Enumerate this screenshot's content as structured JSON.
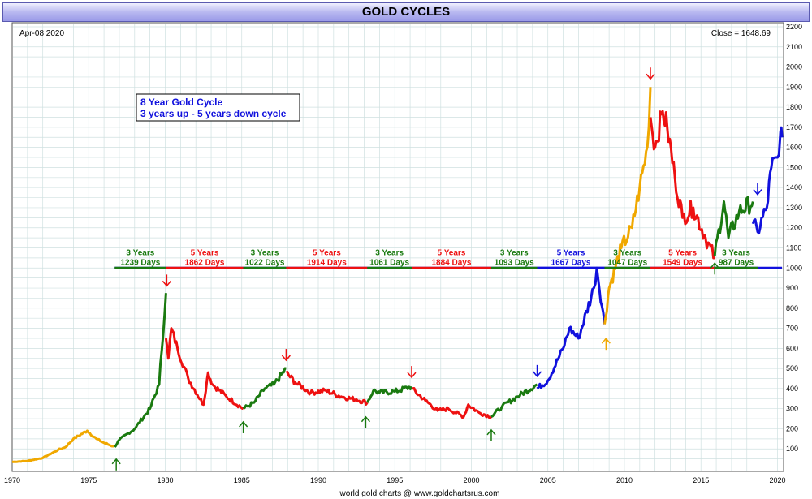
{
  "header": {
    "title": "GOLD CYCLES"
  },
  "info": {
    "date": "Apr-08  2020",
    "close": "Close = 1648.69"
  },
  "annotation": {
    "line1": "8 Year Gold Cycle",
    "line2": "3 years up - 5 years down cycle"
  },
  "footer": {
    "credit": "world gold charts @ www.goldchartsrus.com"
  },
  "colors": {
    "yellow": "#f0a800",
    "green": "#1a7a10",
    "red": "#ee1111",
    "blue": "#1111dd",
    "grid": "#cfe0e0"
  },
  "chart_data": {
    "type": "line",
    "title": "GOLD CYCLES",
    "xlim": [
      1970,
      2020.4
    ],
    "ylim": [
      0,
      2200
    ],
    "x_ticks": [
      1970,
      1975,
      1980,
      1985,
      1990,
      1995,
      2000,
      2005,
      2010,
      2015,
      2020
    ],
    "y_ticks": [
      100,
      200,
      300,
      400,
      500,
      600,
      700,
      800,
      900,
      1000,
      1100,
      1200,
      1300,
      1400,
      1500,
      1600,
      1700,
      1800,
      1900,
      2000,
      2100,
      2200
    ],
    "grid": true,
    "reference_line": 1000,
    "series": [
      {
        "color": "yellow",
        "x": [
          1970,
          1971,
          1972,
          1973,
          1973.5,
          1974,
          1974.9,
          1975.5,
          1976,
          1976.7
        ],
        "y": [
          35,
          40,
          55,
          95,
          110,
          150,
          190,
          150,
          130,
          110
        ]
      },
      {
        "color": "green",
        "x": [
          1976.7,
          1977,
          1978,
          1979,
          1979.6,
          1980.05
        ],
        "y": [
          110,
          145,
          200,
          300,
          420,
          875
        ]
      },
      {
        "color": "red",
        "x": [
          1980.05,
          1980.2,
          1980.4,
          1980.8,
          1981.5,
          1982.5,
          1982.8,
          1983.1,
          1984,
          1985.1
        ],
        "y": [
          650,
          550,
          700,
          600,
          450,
          320,
          480,
          420,
          360,
          300
        ]
      },
      {
        "color": "green",
        "x": [
          1985.1,
          1985.8,
          1986.5,
          1987.1,
          1987.9
        ],
        "y": [
          300,
          330,
          400,
          420,
          500
        ]
      },
      {
        "color": "red",
        "x": [
          1987.9,
          1988.5,
          1989.5,
          1990.5,
          1991.5,
          1992.5,
          1993.2
        ],
        "y": [
          480,
          430,
          380,
          390,
          360,
          345,
          330
        ]
      },
      {
        "color": "green",
        "x": [
          1993.2,
          1993.6,
          1994,
          1995,
          1996.1
        ],
        "y": [
          330,
          390,
          380,
          385,
          410
        ]
      },
      {
        "color": "red",
        "x": [
          1996.1,
          1997,
          1997.8,
          1998.5,
          1999.5,
          1999.8,
          2000.5,
          2001.3
        ],
        "y": [
          400,
          340,
          290,
          300,
          260,
          320,
          280,
          260
        ]
      },
      {
        "color": "green",
        "x": [
          2001.3,
          2002,
          2003,
          2004.3
        ],
        "y": [
          260,
          310,
          360,
          420
        ]
      },
      {
        "color": "blue",
        "x": [
          2004.3,
          2005,
          2006,
          2006.4,
          2007,
          2008,
          2008.2,
          2008.7
        ],
        "y": [
          400,
          440,
          600,
          700,
          650,
          900,
          1000,
          720
        ]
      },
      {
        "color": "yellow",
        "x": [
          2008.7,
          2009,
          2009.8,
          2010.5,
          2011,
          2011.5,
          2011.7
        ],
        "y": [
          720,
          900,
          1100,
          1200,
          1400,
          1600,
          1900
        ]
      },
      {
        "color": "red",
        "x": [
          2011.7,
          2012,
          2012.5,
          2012.8,
          2013.3,
          2013.8,
          2014.5,
          2015.3,
          2015.9
        ],
        "y": [
          1750,
          1600,
          1780,
          1700,
          1450,
          1250,
          1300,
          1150,
          1050
        ]
      },
      {
        "color": "green",
        "x": [
          2015.9,
          2016.5,
          2016.8,
          2017.5,
          2018.4
        ],
        "y": [
          1060,
          1330,
          1150,
          1280,
          1330
        ]
      },
      {
        "color": "blue",
        "x": [
          2018.4,
          2018.7,
          2019.3,
          2019.6,
          2020,
          2020.2,
          2020.3
        ],
        "y": [
          1220,
          1180,
          1300,
          1500,
          1550,
          1680,
          1650
        ]
      }
    ],
    "cycles": [
      {
        "color": "green",
        "years": "3 Years",
        "days": "1239 Days",
        "start": 1976.7,
        "end": 1980.05
      },
      {
        "color": "red",
        "years": "5 Years",
        "days": "1862 Days",
        "start": 1980.05,
        "end": 1985.1
      },
      {
        "color": "green",
        "years": "3 Years",
        "days": "1022 Days",
        "start": 1985.1,
        "end": 1987.9
      },
      {
        "color": "red",
        "years": "5 Years",
        "days": "1914 Days",
        "start": 1987.9,
        "end": 1993.2
      },
      {
        "color": "green",
        "years": "3 Years",
        "days": "1061 Days",
        "start": 1993.2,
        "end": 1996.1
      },
      {
        "color": "red",
        "years": "5 Years",
        "days": "1884 Days",
        "start": 1996.1,
        "end": 2001.3
      },
      {
        "color": "green",
        "years": "3 Years",
        "days": "1093 Days",
        "start": 2001.3,
        "end": 2004.3
      },
      {
        "color": "blue",
        "years": "5 Years",
        "days": "1667 Days",
        "start": 2004.3,
        "end": 2008.7
      },
      {
        "color": "green",
        "years": "3 Years",
        "days": "1047 Days",
        "start": 2008.7,
        "end": 2011.7
      },
      {
        "color": "red",
        "years": "5 Years",
        "days": "1549 Days",
        "start": 2011.7,
        "end": 2015.9
      },
      {
        "color": "green",
        "years": "3 Years",
        "days": "987 Days",
        "start": 2015.9,
        "end": 2018.7
      }
    ],
    "markers": [
      {
        "x": 1976.8,
        "y": 25,
        "dir": "up",
        "color": "green"
      },
      {
        "x": 1980.1,
        "y": 935,
        "dir": "down",
        "color": "red"
      },
      {
        "x": 1985.1,
        "y": 210,
        "dir": "up",
        "color": "green"
      },
      {
        "x": 1987.9,
        "y": 565,
        "dir": "down",
        "color": "red"
      },
      {
        "x": 1993.1,
        "y": 235,
        "dir": "up",
        "color": "green"
      },
      {
        "x": 1996.1,
        "y": 480,
        "dir": "down",
        "color": "red"
      },
      {
        "x": 2001.3,
        "y": 170,
        "dir": "up",
        "color": "green"
      },
      {
        "x": 2004.3,
        "y": 485,
        "dir": "down",
        "color": "blue"
      },
      {
        "x": 2008.8,
        "y": 625,
        "dir": "up",
        "color": "yellow"
      },
      {
        "x": 2011.7,
        "y": 1965,
        "dir": "down",
        "color": "red"
      },
      {
        "x": 2015.9,
        "y": 1000,
        "dir": "up",
        "color": "green"
      },
      {
        "x": 2018.7,
        "y": 1390,
        "dir": "down",
        "color": "blue"
      }
    ]
  }
}
